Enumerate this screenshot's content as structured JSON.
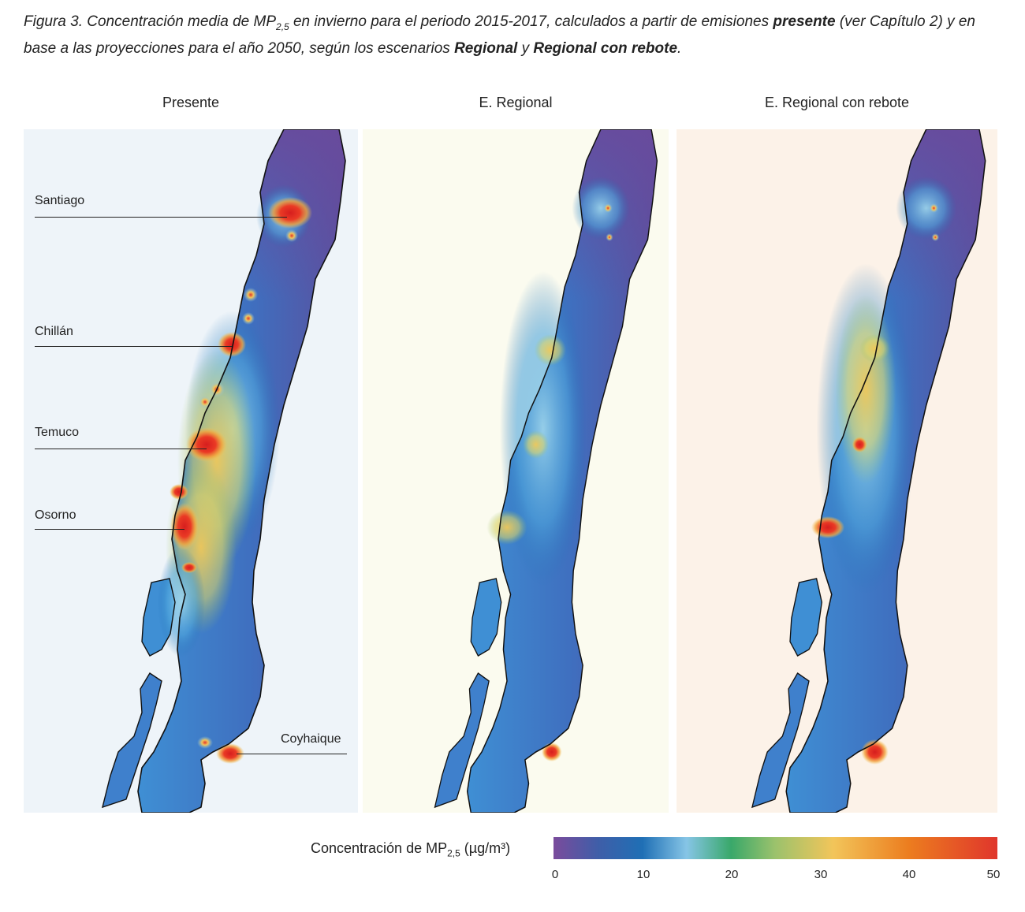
{
  "caption": {
    "figure_label": "Figura 3.",
    "part1": "Concentración media de MP",
    "sub1": "2,5",
    "part2": " en invierno para el periodo 2015-2017, calculados a partir de emisiones ",
    "bold1": "presente",
    "part3": " (ver Capítulo 2) y en base a las proyecciones para el año 2050, según los escenarios ",
    "bold2": "Regional",
    "part4": " y ",
    "bold3": "Regional con rebote",
    "part5": "."
  },
  "panels": [
    {
      "title": "Presente",
      "background": "#eef4f9"
    },
    {
      "title": "E. Regional",
      "background": "#fbfbef"
    },
    {
      "title": "E. Regional con rebote",
      "background": "#fcf2e8"
    }
  ],
  "cities": [
    {
      "name": "Santiago"
    },
    {
      "name": "Chillán"
    },
    {
      "name": "Temuco"
    },
    {
      "name": "Osorno"
    },
    {
      "name": "Coyhaique"
    }
  ],
  "legend": {
    "label_prefix": "Concentración de MP",
    "label_sub": "2,5",
    "label_suffix": " (µg/m³)",
    "ticks": [
      "0",
      "10",
      "20",
      "30",
      "40",
      "50"
    ],
    "colors": [
      "#7a4b9c",
      "#3f5ea8",
      "#1f6fb5",
      "#86c5e6",
      "#39a86a",
      "#9cc26c",
      "#f2c55a",
      "#ec7d1f",
      "#e0362c"
    ]
  }
}
